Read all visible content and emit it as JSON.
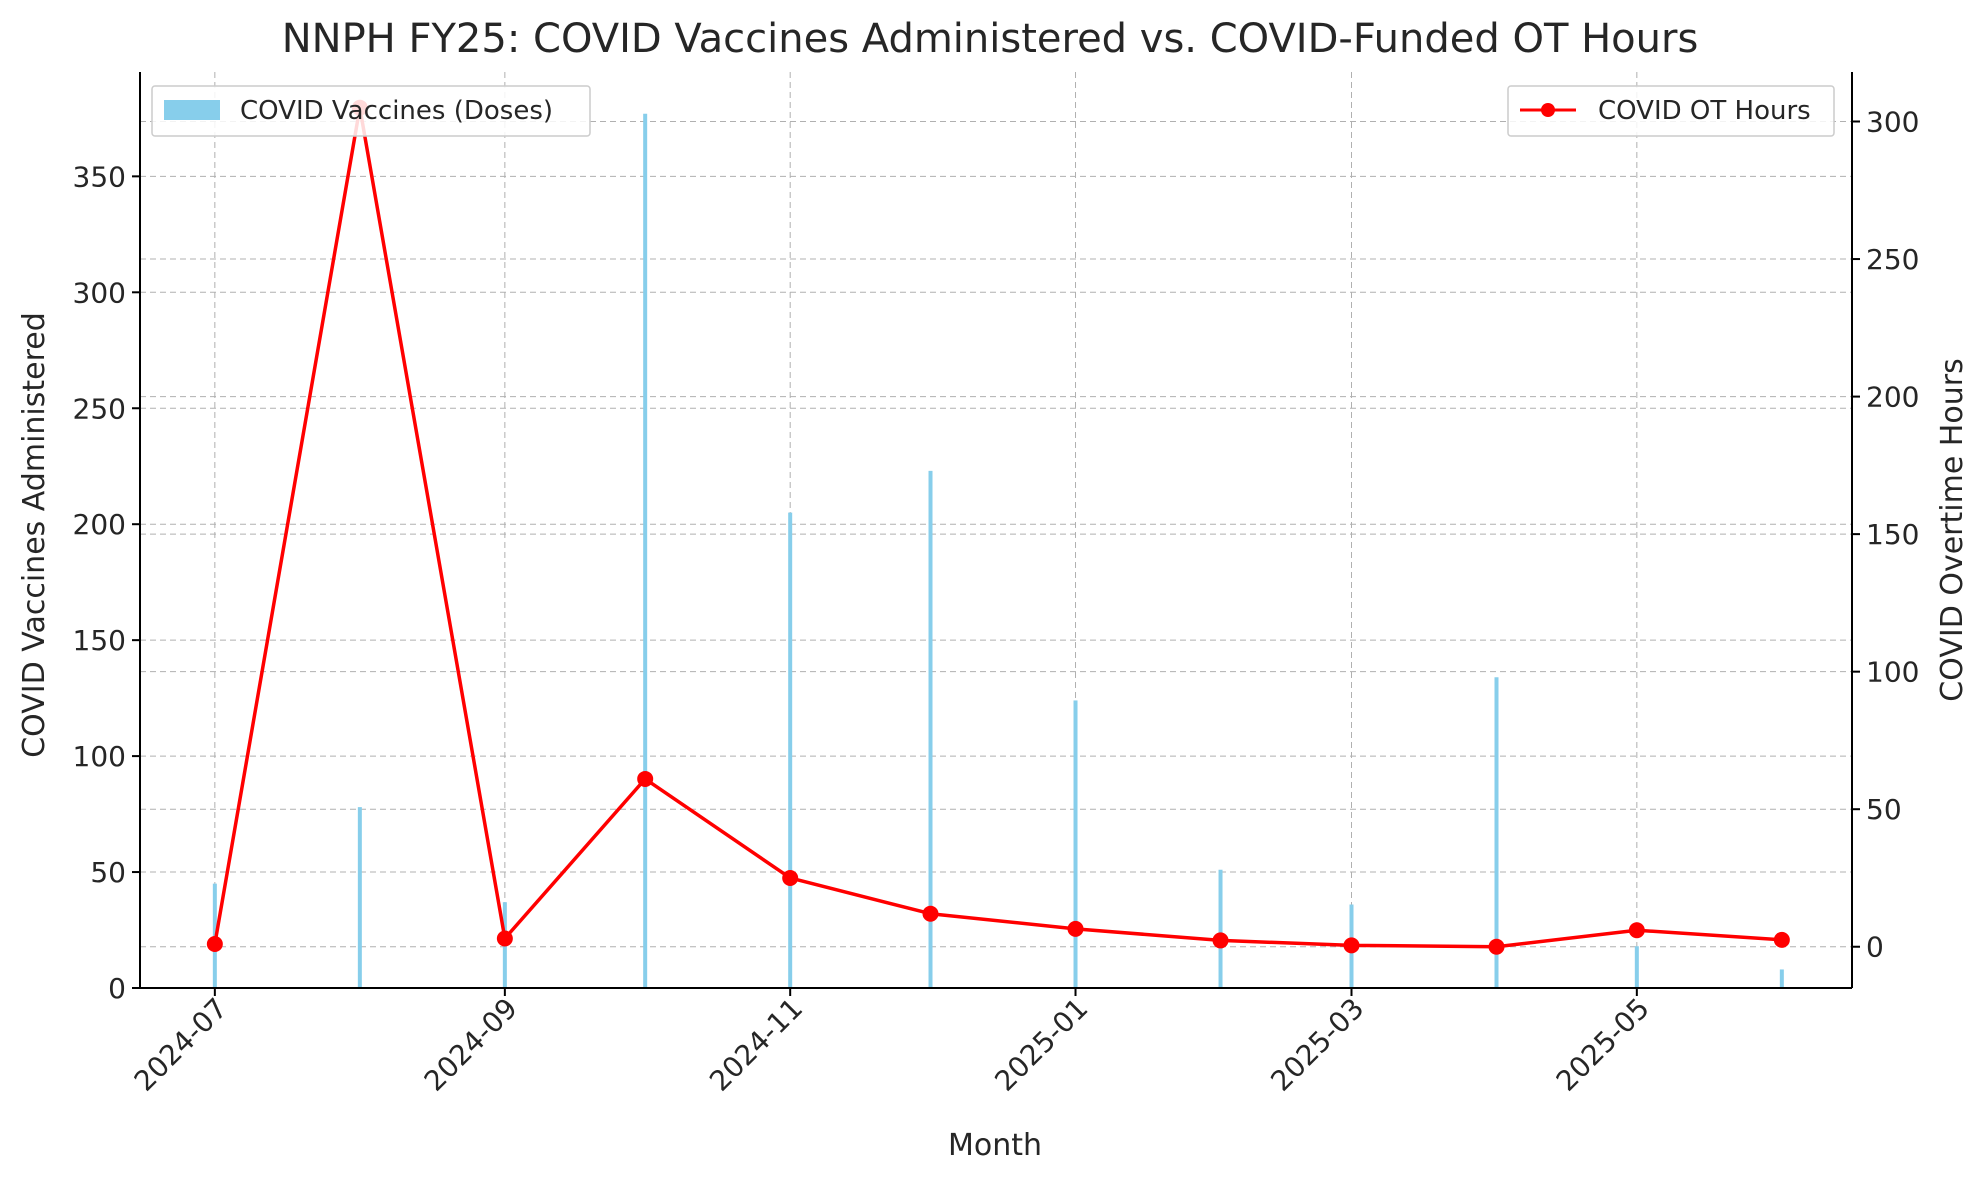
{
  "chart_data": {
    "type": "bar+line",
    "title": "NNPH FY25: COVID Vaccines Administered vs. COVID-Funded OT Hours",
    "xlabel": "Month",
    "ylabel_left": "COVID Vaccines Administered",
    "ylabel_right": "COVID Overtime Hours",
    "x": [
      "2024-07-01",
      "2024-08-01",
      "2024-09-01",
      "2024-10-01",
      "2024-11-01",
      "2024-12-01",
      "2025-01-01",
      "2025-02-01",
      "2025-03-01",
      "2025-04-01",
      "2025-05-01",
      "2025-06-01"
    ],
    "x_ticks": [
      "2024-07",
      "2024-09",
      "2024-11",
      "2025-01",
      "2025-03",
      "2025-05"
    ],
    "x_range": [
      "2024-06-15",
      "2025-06-16"
    ],
    "ylim_left": [
      0,
      395
    ],
    "ylim_right": [
      -15,
      318
    ],
    "yticks_left": [
      0,
      50,
      100,
      150,
      200,
      250,
      300,
      350
    ],
    "yticks_right": [
      0,
      50,
      100,
      150,
      200,
      250,
      300
    ],
    "grid": true,
    "series": [
      {
        "name": "COVID Vaccines (Doses)",
        "kind": "bar",
        "axis": "left",
        "color": "#87CEEB",
        "values": [
          45,
          78,
          37,
          377,
          205,
          223,
          124,
          51,
          36,
          134,
          18,
          8
        ]
      },
      {
        "name": "COVID OT Hours",
        "kind": "line",
        "axis": "right",
        "color": "#FF0000",
        "values": [
          1,
          305,
          3,
          61,
          25,
          12,
          6.5,
          2.3,
          0.5,
          0,
          6,
          2.5
        ]
      }
    ],
    "legend": [
      {
        "label": "COVID Vaccines (Doses)",
        "placement": "top-left"
      },
      {
        "label": "COVID OT Hours",
        "placement": "top-right"
      }
    ]
  }
}
